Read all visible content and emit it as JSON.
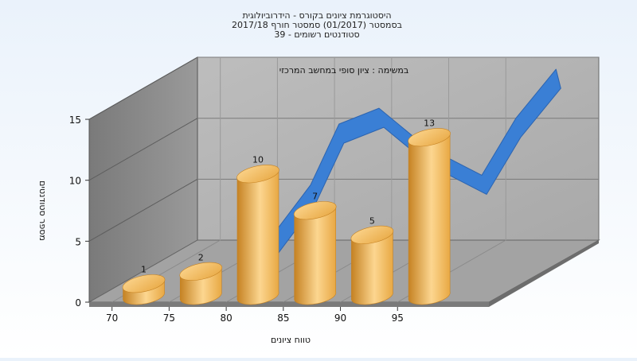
{
  "chart_data": {
    "type": "bar",
    "title_lines": [
      "היסטוגרמת ציונים בקורס - הידרוביולוגית",
      "בסמסטר  (01/2017)  סמסטר חורף 2017/18",
      "סטודנטים רשומים - 39"
    ],
    "subtitle": "במשימה : ציון סופי במחשב המרכזי",
    "xlabel": "טווח ציונים",
    "ylabel": "מספר סטודנטים",
    "x_ticks": [
      "70",
      "75",
      "80",
      "85",
      "90",
      "95"
    ],
    "y_ticks": [
      0,
      5,
      10,
      15
    ],
    "ylim": [
      0,
      15
    ],
    "bars": [
      {
        "x": 72.5,
        "value": 1
      },
      {
        "x": 77.5,
        "value": 2
      },
      {
        "x": 82.5,
        "value": 10
      },
      {
        "x": 87.5,
        "value": 7
      },
      {
        "x": 92.5,
        "value": 5
      },
      {
        "x": 97.5,
        "value": 13
      }
    ],
    "curve": [
      {
        "x": 77.5,
        "value": 0.8
      },
      {
        "x": 82.5,
        "value": 7.0
      },
      {
        "x": 85.0,
        "value": 12.0
      },
      {
        "x": 88.5,
        "value": 13.3
      },
      {
        "x": 92.5,
        "value": 10.2
      },
      {
        "x": 97.5,
        "value": 7.8
      },
      {
        "x": 100.5,
        "value": 12.5
      },
      {
        "x": 104.0,
        "value": 16.5
      }
    ],
    "colors": {
      "bar": "#e8a843",
      "bar_light": "#fcd690",
      "bar_dark": "#c58223",
      "curve": "#3a7fd5",
      "wall": "#b3b3b3",
      "side_wall": "#8a8a8a",
      "floor": "#9c9c9c"
    }
  }
}
